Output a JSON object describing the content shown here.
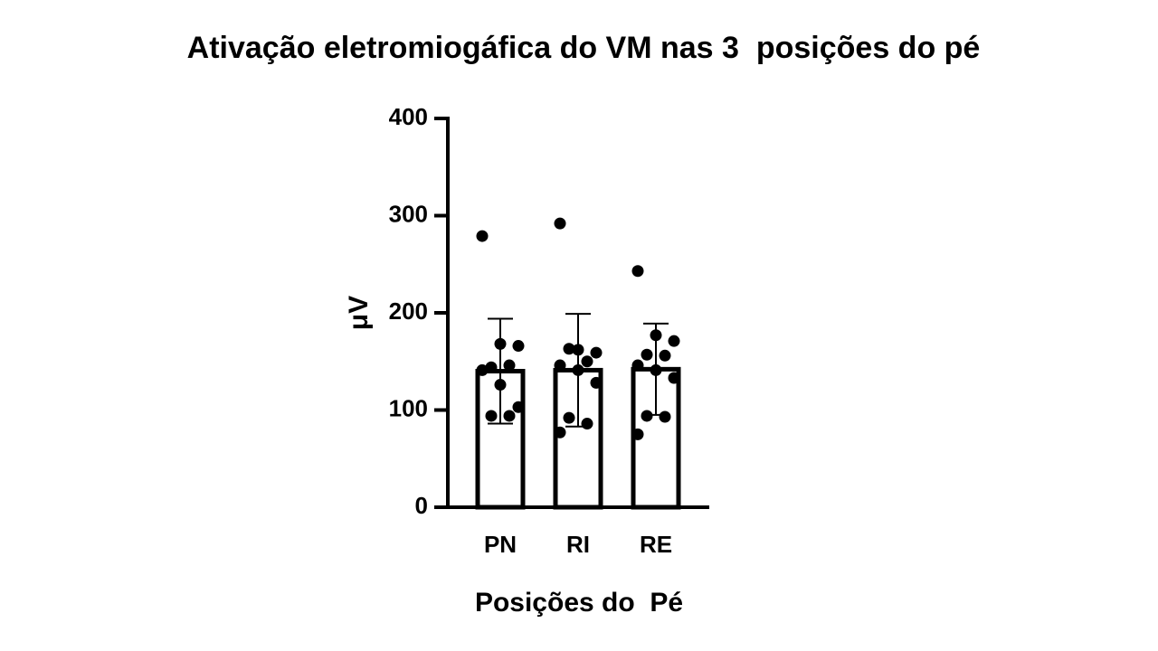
{
  "chart_data": {
    "type": "bar",
    "title": "Ativação eletromiogáfica do VM nas 3  posições do pé",
    "x_label": "Posições do  Pé",
    "y_label": "μV",
    "categories": [
      "PN",
      "RI",
      "RE"
    ],
    "values": [
      140,
      141,
      142
    ],
    "errors": [
      54,
      58,
      47
    ],
    "points": [
      [
        279,
        168,
        166,
        144,
        146,
        141,
        126,
        103,
        94,
        94
      ],
      [
        292,
        162,
        159,
        163,
        150,
        146,
        141,
        128,
        92,
        86,
        77
      ],
      [
        243,
        177,
        171,
        157,
        156,
        146,
        141,
        133,
        94,
        93,
        75
      ]
    ],
    "color": "#ffffff",
    "point_color": "#000000",
    "ylim": [
      0,
      400
    ],
    "yticks": [
      0,
      100,
      200,
      300,
      400
    ]
  }
}
